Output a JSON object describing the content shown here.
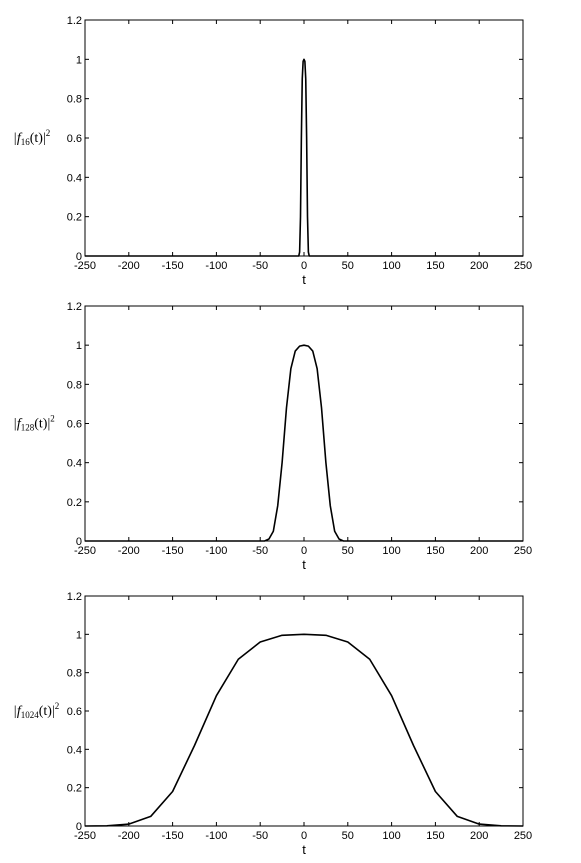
{
  "chart_data": [
    {
      "type": "line",
      "ylabel": {
        "pre": "|f",
        "sub": "16",
        "mid": "(t)|",
        "sup": "2"
      },
      "xlabel": "t",
      "color": "#000000",
      "x": [
        -250,
        -6,
        -5,
        -4,
        -3,
        -2,
        -1,
        0,
        1,
        2,
        3,
        4,
        5,
        6,
        250
      ],
      "values": [
        0,
        0,
        0.02,
        0.2,
        0.6,
        0.9,
        0.99,
        1,
        0.99,
        0.9,
        0.6,
        0.2,
        0.02,
        0,
        0
      ],
      "xlim": [
        -250,
        250
      ],
      "ylim": [
        0,
        1.2
      ],
      "xticks": [
        -250,
        -200,
        -150,
        -100,
        -50,
        0,
        50,
        100,
        150,
        200,
        250
      ],
      "yticks": [
        0,
        0.2,
        0.4,
        0.6,
        0.8,
        1,
        1.2
      ]
    },
    {
      "type": "line",
      "ylabel": {
        "pre": "|f",
        "sub": "128",
        "mid": "(t)|",
        "sup": "2"
      },
      "xlabel": "t",
      "color": "#000000",
      "x": [
        -250,
        -45,
        -40,
        -35,
        -30,
        -25,
        -20,
        -15,
        -10,
        -5,
        0,
        5,
        10,
        15,
        20,
        25,
        30,
        35,
        40,
        45,
        250
      ],
      "values": [
        0,
        0,
        0.01,
        0.05,
        0.18,
        0.4,
        0.68,
        0.88,
        0.97,
        0.995,
        1,
        0.995,
        0.97,
        0.88,
        0.68,
        0.4,
        0.18,
        0.05,
        0.01,
        0,
        0
      ],
      "xlim": [
        -250,
        250
      ],
      "ylim": [
        0,
        1.2
      ],
      "xticks": [
        -250,
        -200,
        -150,
        -100,
        -50,
        0,
        50,
        100,
        150,
        200,
        250
      ],
      "yticks": [
        0,
        0.2,
        0.4,
        0.6,
        0.8,
        1,
        1.2
      ]
    },
    {
      "type": "line",
      "ylabel": {
        "pre": "|f",
        "sub": "1024",
        "mid": "(t)|",
        "sup": "2"
      },
      "xlabel": "t",
      "color": "#000000",
      "x": [
        -250,
        -225,
        -200,
        -175,
        -150,
        -125,
        -100,
        -75,
        -50,
        -25,
        0,
        25,
        50,
        75,
        100,
        125,
        150,
        175,
        200,
        225,
        250
      ],
      "values": [
        0,
        0.001,
        0.01,
        0.05,
        0.18,
        0.42,
        0.68,
        0.87,
        0.96,
        0.995,
        1,
        0.995,
        0.96,
        0.87,
        0.68,
        0.42,
        0.18,
        0.05,
        0.01,
        0.001,
        0
      ],
      "xlim": [
        -250,
        250
      ],
      "ylim": [
        0,
        1.2
      ],
      "xticks": [
        -250,
        -200,
        -150,
        -100,
        -50,
        0,
        50,
        100,
        150,
        200,
        250
      ],
      "yticks": [
        0,
        0.2,
        0.4,
        0.6,
        0.8,
        1,
        1.2
      ]
    }
  ]
}
